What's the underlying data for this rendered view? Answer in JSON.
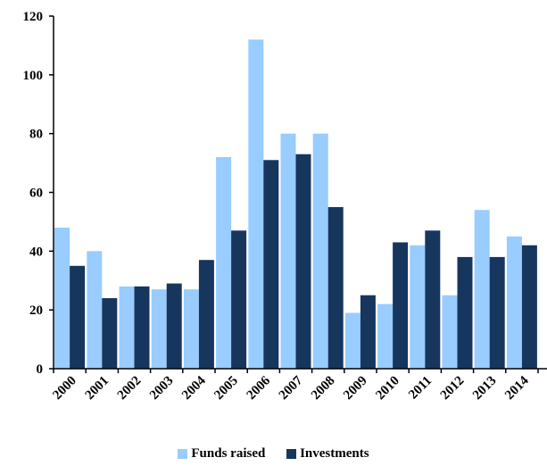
{
  "chart_data": {
    "type": "bar",
    "title": "",
    "xlabel": "",
    "ylabel": "",
    "categories": [
      "2000",
      "2001",
      "2002",
      "2003",
      "2004",
      "2005",
      "2006",
      "2007",
      "2008",
      "2009",
      "2010",
      "2011",
      "2012",
      "2013",
      "2014"
    ],
    "series": [
      {
        "name": "Funds raised",
        "color": "#99ccff",
        "values": [
          48,
          40,
          28,
          27,
          27,
          72,
          112,
          80,
          80,
          19,
          22,
          42,
          25,
          54,
          45
        ]
      },
      {
        "name": "Investments",
        "color": "#17365d",
        "values": [
          35,
          24,
          28,
          29,
          37,
          47,
          71,
          73,
          55,
          25,
          43,
          47,
          38,
          38,
          42
        ]
      }
    ],
    "ylim": [
      0,
      120
    ],
    "yticks": [
      0,
      20,
      40,
      60,
      80,
      100,
      120
    ],
    "grid": false,
    "legend_position": "bottom"
  }
}
